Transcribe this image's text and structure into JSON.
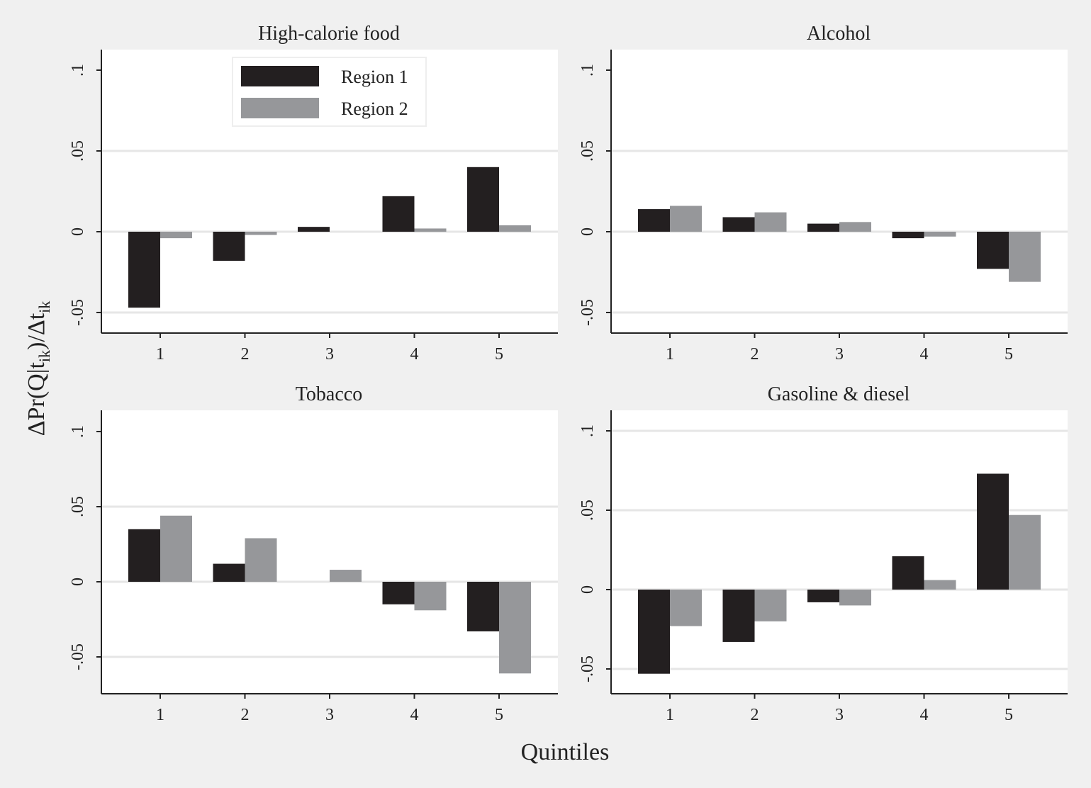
{
  "chart_data": [
    {
      "type": "bar",
      "title": "High-calorie food",
      "categories": [
        "1",
        "2",
        "3",
        "4",
        "5"
      ],
      "series": [
        {
          "name": "Region 1",
          "values": [
            -0.047,
            -0.018,
            0.003,
            0.022,
            0.04
          ]
        },
        {
          "name": "Region 2",
          "values": [
            -0.004,
            -0.002,
            0.0,
            0.002,
            0.004
          ]
        }
      ],
      "ylim": [
        -0.063,
        0.113
      ],
      "yticks": [
        -0.05,
        0,
        0.05,
        0.1
      ],
      "ytick_labels": [
        "-.05",
        "0",
        ".05",
        ".1"
      ],
      "gridlines": [
        -0.05,
        0,
        0.05
      ],
      "legend": "top-center"
    },
    {
      "type": "bar",
      "title": "Alcohol",
      "categories": [
        "1",
        "2",
        "3",
        "4",
        "5"
      ],
      "series": [
        {
          "name": "Region 1",
          "values": [
            0.014,
            0.009,
            0.005,
            -0.004,
            -0.023
          ]
        },
        {
          "name": "Region 2",
          "values": [
            0.016,
            0.012,
            0.006,
            -0.003,
            -0.031
          ]
        }
      ],
      "ylim": [
        -0.063,
        0.113
      ],
      "yticks": [
        -0.05,
        0,
        0.05,
        0.1
      ],
      "ytick_labels": [
        "-.05",
        "0",
        ".05",
        ".1"
      ],
      "gridlines": [
        -0.05,
        0,
        0.05
      ]
    },
    {
      "type": "bar",
      "title": "Tobacco",
      "categories": [
        "1",
        "2",
        "3",
        "4",
        "5"
      ],
      "series": [
        {
          "name": "Region 1",
          "values": [
            0.035,
            0.012,
            0.0,
            -0.015,
            -0.033
          ]
        },
        {
          "name": "Region 2",
          "values": [
            0.044,
            0.029,
            0.008,
            -0.019,
            -0.061
          ]
        }
      ],
      "ylim": [
        -0.074,
        0.113
      ],
      "yticks": [
        -0.05,
        0,
        0.05,
        0.1
      ],
      "ytick_labels": [
        "-.05",
        "0",
        ".05",
        ".1"
      ],
      "gridlines": [
        -0.05,
        0,
        0.05
      ]
    },
    {
      "type": "bar",
      "title": "Gasoline & diesel",
      "categories": [
        "1",
        "2",
        "3",
        "4",
        "5"
      ],
      "series": [
        {
          "name": "Region 1",
          "values": [
            -0.053,
            -0.033,
            -0.008,
            0.021,
            0.073
          ]
        },
        {
          "name": "Region 2",
          "values": [
            -0.023,
            -0.02,
            -0.01,
            0.006,
            0.047
          ]
        }
      ],
      "ylim": [
        -0.066,
        0.113
      ],
      "yticks": [
        -0.05,
        0,
        0.05,
        0.1
      ],
      "ytick_labels": [
        "-.05",
        "0",
        ".05",
        ".1"
      ],
      "gridlines": [
        -0.05,
        0,
        0.05,
        0.1
      ]
    }
  ],
  "shared": {
    "xlabel": "Quintiles",
    "ylabel": "ΔPr(Q|t",
    "ylabel_sub": "ik",
    "ylabel_mid": ")/Δt",
    "ylabel_sub2": "ik",
    "series_colors": [
      "#231f20",
      "#96979a"
    ],
    "legend": [
      "Region 1",
      "Region 2"
    ]
  }
}
